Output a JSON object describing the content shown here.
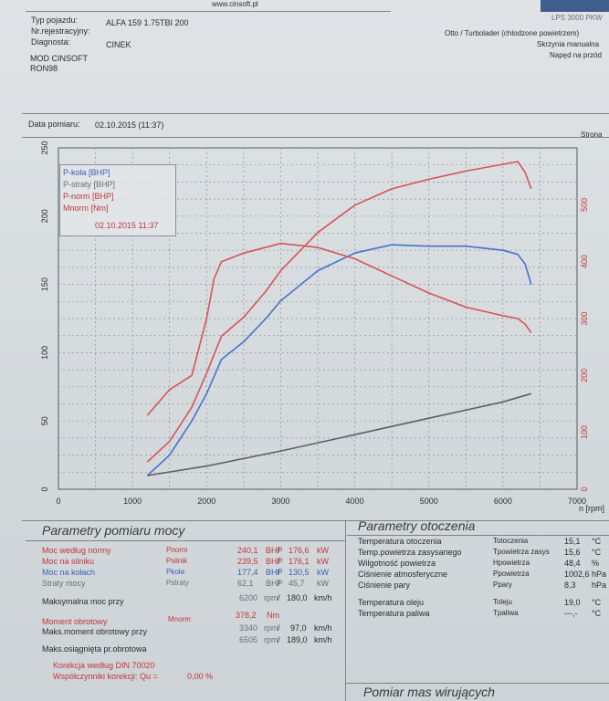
{
  "header": {
    "website": "www.cinsoft.pl",
    "model": "LPS 3000 PKW",
    "vehicle_type_label": "Typ pojazdu:",
    "vehicle_type": "ALFA 159 1.75TBI 200",
    "registration_label": "Nr.rejestracyjny:",
    "registration": "",
    "diagnostician_label": "Diagnosta:",
    "diagnostician": "CINEK",
    "engine_type": "Otto / Turbolader (chlodzone powietrzem)",
    "gearbox": "Skrzynia manualna",
    "drive": "Napęd na przód",
    "mod": "MOD CINSOFT",
    "fuel": "RON98",
    "date_label": "Data pomiaru:",
    "date": "02.10.2015 (11:37)",
    "right_note": "Strona"
  },
  "legend": {
    "items": [
      "P-koła [BHP]",
      "P-straty [BHP]",
      "P-norm [BHP]",
      "Mnorm [Nm]"
    ],
    "timestamp": "02.10.2015 11:37"
  },
  "colors": {
    "wheel": "#4a6fcf",
    "loss": "#5f6063",
    "norm": "#d65358",
    "torque": "#d65358"
  },
  "chart_data": {
    "type": "line",
    "xlabel": "n [rpm]",
    "xlim": [
      0,
      7000
    ],
    "ylim_left": [
      0,
      250
    ],
    "ylim_right": [
      0,
      600
    ],
    "x_ticks": [
      "0",
      "1000",
      "2000",
      "3000",
      "4000",
      "5000",
      "6000",
      "7000"
    ],
    "y_left_ticks": [
      "0",
      "50",
      "100",
      "150",
      "200",
      "250"
    ],
    "y_right_ticks": [
      "0",
      "100",
      "200",
      "300",
      "400",
      "500"
    ],
    "series": [
      {
        "name": "P-koła [BHP]",
        "axis": "left",
        "color": "#4a6fcf",
        "points": [
          [
            1200,
            10
          ],
          [
            1500,
            25
          ],
          [
            1800,
            50
          ],
          [
            2000,
            70
          ],
          [
            2200,
            95
          ],
          [
            2500,
            108
          ],
          [
            2800,
            125
          ],
          [
            3000,
            138
          ],
          [
            3500,
            160
          ],
          [
            4000,
            173
          ],
          [
            4500,
            179
          ],
          [
            5000,
            178
          ],
          [
            5500,
            178
          ],
          [
            6000,
            175
          ],
          [
            6200,
            172
          ],
          [
            6300,
            165
          ],
          [
            6380,
            150
          ]
        ]
      },
      {
        "name": "P-straty [BHP]",
        "axis": "left",
        "color": "#5f6063",
        "points": [
          [
            1200,
            10
          ],
          [
            2000,
            17
          ],
          [
            3000,
            28
          ],
          [
            4000,
            40
          ],
          [
            5000,
            52
          ],
          [
            6000,
            64
          ],
          [
            6380,
            70
          ]
        ]
      },
      {
        "name": "P-norm [BHP]",
        "axis": "left",
        "color": "#d65358",
        "points": [
          [
            1200,
            20
          ],
          [
            1500,
            35
          ],
          [
            1800,
            60
          ],
          [
            2000,
            85
          ],
          [
            2200,
            112
          ],
          [
            2500,
            126
          ],
          [
            2800,
            145
          ],
          [
            3000,
            160
          ],
          [
            3500,
            188
          ],
          [
            4000,
            208
          ],
          [
            4500,
            220
          ],
          [
            5000,
            227
          ],
          [
            5500,
            233
          ],
          [
            6000,
            238
          ],
          [
            6200,
            240
          ],
          [
            6300,
            232
          ],
          [
            6380,
            220
          ]
        ]
      },
      {
        "name": "Mnorm [Nm]",
        "axis": "right",
        "color": "#d65358",
        "points": [
          [
            1200,
            130
          ],
          [
            1500,
            175
          ],
          [
            1800,
            200
          ],
          [
            2000,
            300
          ],
          [
            2100,
            370
          ],
          [
            2200,
            400
          ],
          [
            2500,
            415
          ],
          [
            3000,
            432
          ],
          [
            3500,
            425
          ],
          [
            4000,
            405
          ],
          [
            4500,
            375
          ],
          [
            5000,
            345
          ],
          [
            5500,
            320
          ],
          [
            6000,
            305
          ],
          [
            6200,
            300
          ],
          [
            6300,
            290
          ],
          [
            6380,
            275
          ]
        ]
      }
    ]
  },
  "params": {
    "title": "Parametry pomiaru mocy",
    "rows": [
      {
        "label": "Moc według normy",
        "sym": "Pnorm",
        "v1": "240,1",
        "u1": "BHP",
        "v2": "176,6",
        "u2": "kW"
      },
      {
        "label": "Moc na silniku",
        "sym": "Psilnik",
        "v1": "239,5",
        "u1": "BHP",
        "v2": "176,1",
        "u2": "kW"
      },
      {
        "label": "Moc na kołach",
        "sym": "Pkoła",
        "v1": "177,4",
        "u1": "BHP",
        "v2": "130,5",
        "u2": "kW"
      },
      {
        "label": "Straty mocy",
        "sym": "Pstraty",
        "v1": "62,1",
        "u1": "BHP",
        "v2": "45,7",
        "u2": "kW"
      }
    ],
    "max_power_label": "Maksymalna moc przy",
    "max_power_rpm": "6200",
    "max_power_speed": "180,0",
    "torque_label": "Moment obrotowy",
    "torque_sym": "Mnorm",
    "torque_value": "378,2",
    "torque_unit": "Nm",
    "max_torque_label": "Maks.moment obrotowy przy",
    "max_torque_rpm": "3340",
    "max_torque_speed": "97,0",
    "max_rpm_label": "Maks.osiągnięta pr.obrotowa",
    "max_rpm": "6505",
    "max_rpm_speed": "189,0",
    "rpm_unit": "rpm",
    "speed_unit": "km/h",
    "correction": "Korekcja według DIN 70020",
    "correction_factors": "Współczynniki korekcji: Qu =",
    "correction_value": "0,00 %"
  },
  "env": {
    "title": "Parametry otoczenia",
    "rows": [
      {
        "label": "Temperatura otoczenia",
        "sym": "Totoczenia",
        "value": "15,1",
        "unit": "°C"
      },
      {
        "label": "Temp.powietrza zasysanego",
        "sym": "Tpowietrza zasys",
        "value": "15,6",
        "unit": "°C"
      },
      {
        "label": "Wilgotność powietrza",
        "sym": "Hpowietrza",
        "value": "48,4",
        "unit": "%"
      },
      {
        "label": "Ciśnienie atmosferyczne",
        "sym": "Ppowietrza",
        "value": "1002,6",
        "unit": "hPa"
      },
      {
        "label": "Ciśnienie pary",
        "sym": "Ppary",
        "value": "8,3",
        "unit": "hPa"
      },
      {
        "label": "Temperatura oleju",
        "sym": "Toleju",
        "value": "19,0",
        "unit": "°C"
      },
      {
        "label": "Temperatura paliwa",
        "sym": "Tpaliwa",
        "value": "---,-",
        "unit": "°C"
      }
    ]
  },
  "footer": {
    "masses_title": "Pomiar mas wirujących"
  }
}
